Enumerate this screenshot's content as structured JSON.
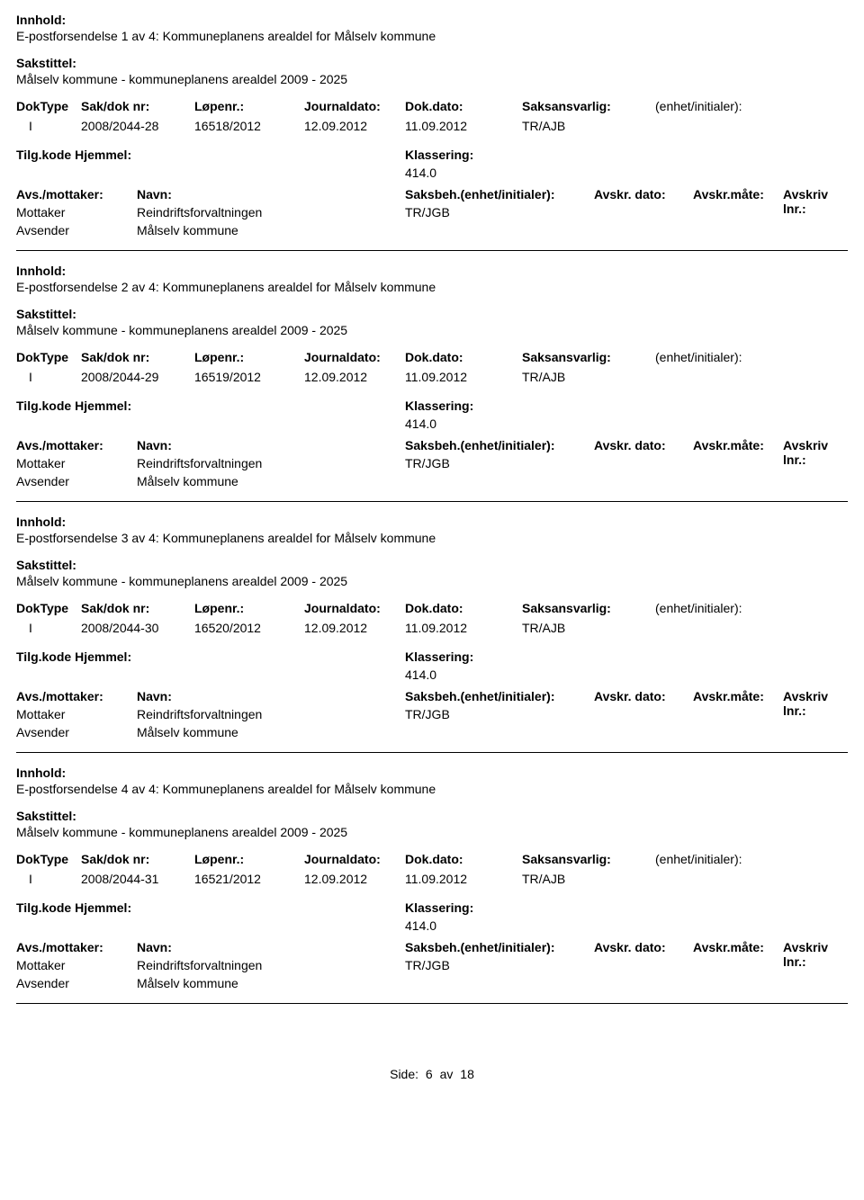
{
  "labels": {
    "innhold": "Innhold:",
    "sakstittel": "Sakstittel:",
    "doktype": "DokType",
    "sakdok": "Sak/dok nr:",
    "lopenr": "Løpenr.:",
    "journaldato": "Journaldato:",
    "dokdato": "Dok.dato:",
    "saksansvarlig": "Saksansvarlig:",
    "enhet": "(enhet/initialer):",
    "tilgkode_hjemmel": "Tilg.kode Hjemmel:",
    "klassering": "Klassering:",
    "avs_mottaker": "Avs./mottaker:",
    "navn": "Navn:",
    "saksbeh": "Saksbeh.(enhet/initialer):",
    "avskr_dato": "Avskr. dato:",
    "avskr_mate": "Avskr.måte:",
    "avskriv_lnr": "Avskriv lnr.:",
    "mottaker": "Mottaker",
    "avsender": "Avsender",
    "side": "Side:",
    "av": "av"
  },
  "records": [
    {
      "innhold": "E-postforsendelse 1 av 4: Kommuneplanens arealdel for Målselv kommune",
      "sakstittel": "Målselv kommune - kommuneplanens arealdel 2009 - 2025",
      "doktype": "I",
      "sakdok": "2008/2044-28",
      "lopenr": "16518/2012",
      "journaldato": "12.09.2012",
      "dokdato": "11.09.2012",
      "saksansvarlig": "TR/AJB",
      "klassering": "414.0",
      "mottaker_navn": "Reindriftsforvaltningen",
      "saksbeh": "TR/JGB",
      "avsender_navn": "Målselv kommune"
    },
    {
      "innhold": "E-postforsendelse 2 av 4: Kommuneplanens arealdel for Målselv kommune",
      "sakstittel": "Målselv kommune - kommuneplanens arealdel 2009 - 2025",
      "doktype": "I",
      "sakdok": "2008/2044-29",
      "lopenr": "16519/2012",
      "journaldato": "12.09.2012",
      "dokdato": "11.09.2012",
      "saksansvarlig": "TR/AJB",
      "klassering": "414.0",
      "mottaker_navn": "Reindriftsforvaltningen",
      "saksbeh": "TR/JGB",
      "avsender_navn": "Målselv kommune"
    },
    {
      "innhold": "E-postforsendelse 3 av 4: Kommuneplanens arealdel for Målselv kommune",
      "sakstittel": "Målselv kommune - kommuneplanens arealdel 2009 - 2025",
      "doktype": "I",
      "sakdok": "2008/2044-30",
      "lopenr": "16520/2012",
      "journaldato": "12.09.2012",
      "dokdato": "11.09.2012",
      "saksansvarlig": "TR/AJB",
      "klassering": "414.0",
      "mottaker_navn": "Reindriftsforvaltningen",
      "saksbeh": "TR/JGB",
      "avsender_navn": "Målselv kommune"
    },
    {
      "innhold": "E-postforsendelse 4 av 4: Kommuneplanens arealdel for Målselv kommune",
      "sakstittel": "Målselv kommune - kommuneplanens arealdel 2009 - 2025",
      "doktype": "I",
      "sakdok": "2008/2044-31",
      "lopenr": "16521/2012",
      "journaldato": "12.09.2012",
      "dokdato": "11.09.2012",
      "saksansvarlig": "TR/AJB",
      "klassering": "414.0",
      "mottaker_navn": "Reindriftsforvaltningen",
      "saksbeh": "TR/JGB",
      "avsender_navn": "Målselv kommune"
    }
  ],
  "footer": {
    "page": "6",
    "total": "18"
  }
}
